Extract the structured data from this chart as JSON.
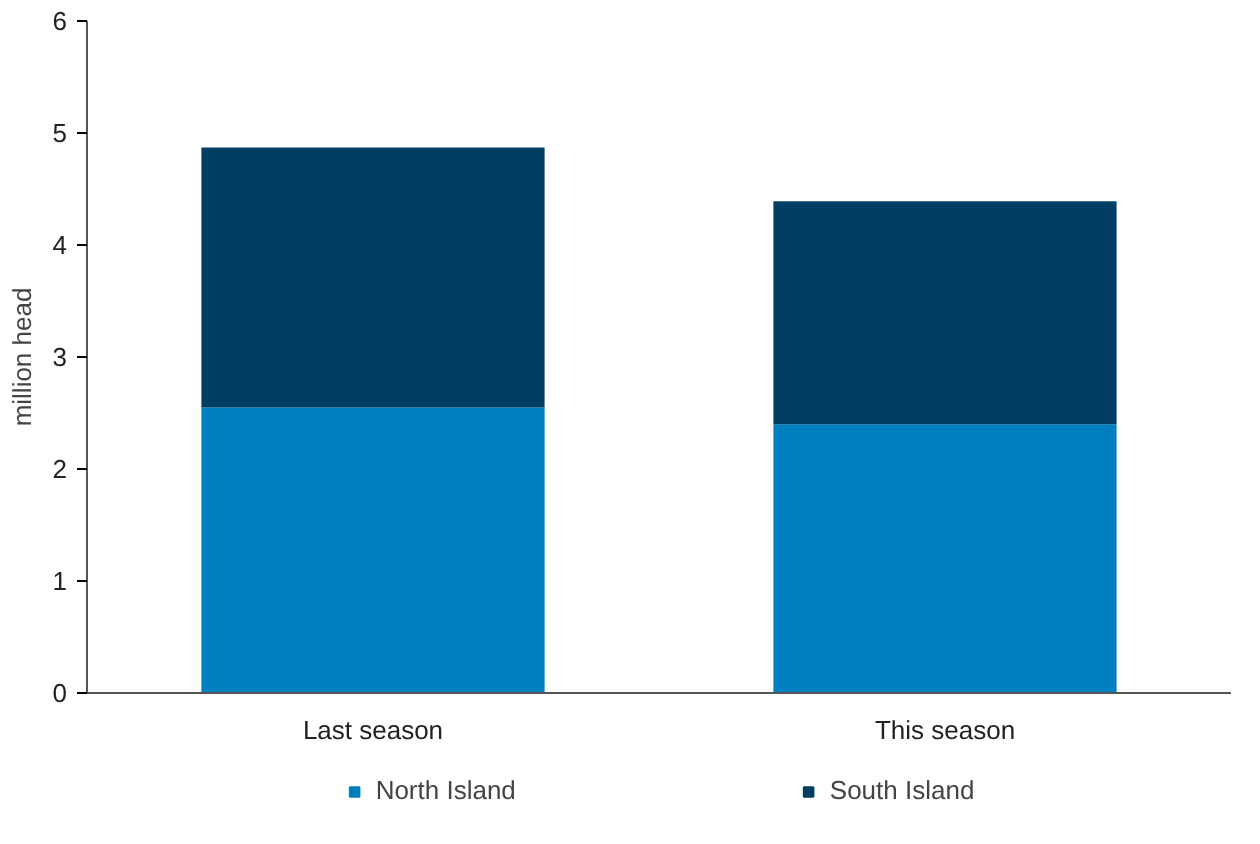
{
  "chart_data": {
    "type": "bar",
    "stacked": true,
    "ylabel": "million head",
    "categories": [
      "Last season",
      "This season"
    ],
    "series": [
      {
        "name": "North Island",
        "color": "#0080c0",
        "values": [
          2.55,
          2.4
        ]
      },
      {
        "name": "South Island",
        "color": "#003f63",
        "values": [
          2.32,
          1.99
        ]
      }
    ],
    "ylim": [
      0,
      6
    ],
    "yticks": [
      0,
      1,
      2,
      3,
      4,
      5,
      6
    ],
    "grid": false,
    "legend": "bottom"
  }
}
